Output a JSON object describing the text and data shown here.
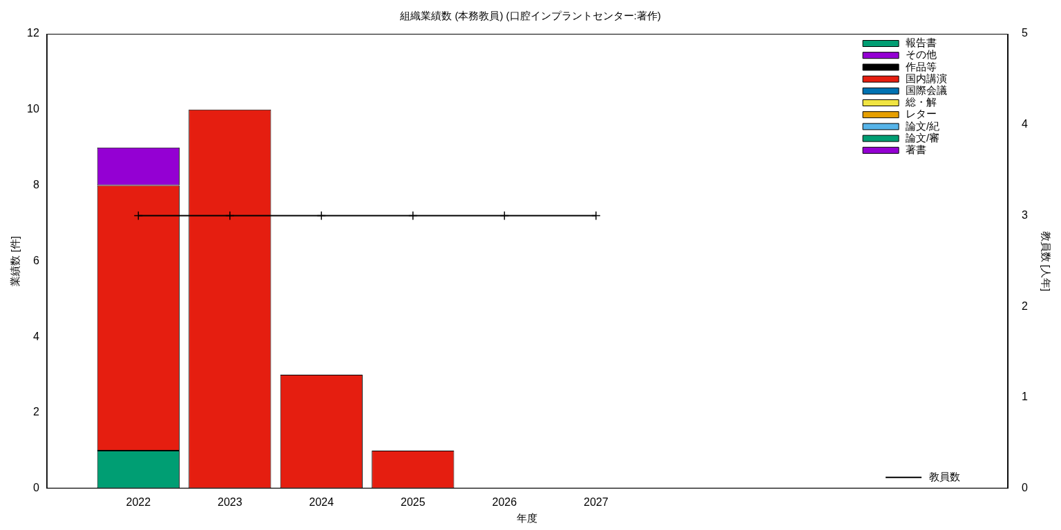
{
  "chart_data": {
    "type": "bar",
    "title": "組織業績数 (本務教員) (口腔インプラントセンター:著作)",
    "xlabel": "年度",
    "ylabel": "業績数 [件]",
    "y2label": "教員数 [人年]",
    "x": [
      2022,
      2023,
      2024,
      2025,
      2026,
      2027
    ],
    "xlim": [
      2021,
      2031.5
    ],
    "xticks": [
      2022,
      2023,
      2024,
      2025,
      2026,
      2027
    ],
    "ylim": [
      0,
      12
    ],
    "yticks": [
      0,
      2,
      4,
      6,
      8,
      10,
      12
    ],
    "y2lim": [
      0,
      5
    ],
    "y2ticks": [
      0,
      1,
      2,
      3,
      4,
      5
    ],
    "stacked": true,
    "grid": false,
    "legend": "top right",
    "series": [
      {
        "name": "著書",
        "color": "#9400d3",
        "values": [
          0,
          0,
          0,
          0,
          0,
          0
        ]
      },
      {
        "name": "論文/審",
        "color": "#009e73",
        "values": [
          1,
          0,
          0,
          0,
          0,
          0
        ]
      },
      {
        "name": "論文/紀",
        "color": "#56b4e9",
        "values": [
          0,
          0,
          0,
          0,
          0,
          0
        ]
      },
      {
        "name": "レター",
        "color": "#e69f00",
        "values": [
          0,
          0,
          0,
          0,
          0,
          0
        ]
      },
      {
        "name": "総・解",
        "color": "#f0e442",
        "values": [
          0,
          0,
          0,
          0,
          0,
          0
        ]
      },
      {
        "name": "国際会議",
        "color": "#0072b2",
        "values": [
          0,
          0,
          0,
          0,
          0,
          0
        ]
      },
      {
        "name": "国内講演",
        "color": "#e51e10",
        "values": [
          7,
          10,
          3,
          1,
          0,
          0
        ]
      },
      {
        "name": "作品等",
        "color": "#000000",
        "values": [
          0,
          0,
          0,
          0,
          0,
          0
        ]
      },
      {
        "name": "その他",
        "color": "#9400d3",
        "values": [
          1,
          0,
          0,
          0,
          0,
          0
        ]
      },
      {
        "name": "報告書",
        "color": "#009e73",
        "values": [
          0,
          0,
          0,
          0,
          0,
          0
        ]
      },
      {
        "name": "教員数",
        "type": "line",
        "axis": "y2",
        "color": "#000000",
        "marker": "cross",
        "values": [
          3,
          3,
          3,
          3,
          3,
          3
        ]
      }
    ]
  }
}
